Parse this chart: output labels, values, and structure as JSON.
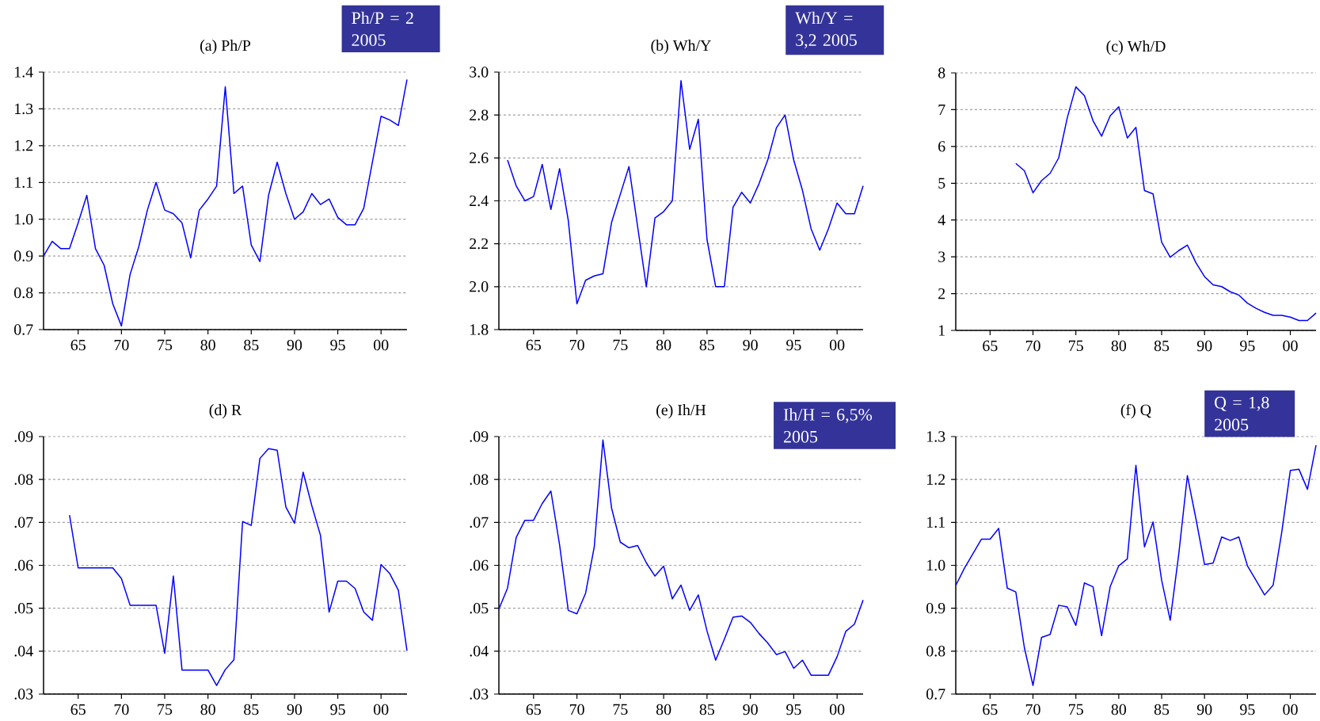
{
  "chart_data": [
    {
      "type": "line",
      "title": "(a) Ph/P",
      "annotations": [
        "Ph/P = 2 2005"
      ],
      "grid": "y",
      "xlim": [
        1961,
        2003
      ],
      "ylim": [
        0.7,
        1.4
      ],
      "xticks": [
        {
          "value": 1965,
          "label": "65"
        },
        {
          "value": 1970,
          "label": "70"
        },
        {
          "value": 1975,
          "label": "75"
        },
        {
          "value": 1980,
          "label": "80"
        },
        {
          "value": 1985,
          "label": "85"
        },
        {
          "value": 1990,
          "label": "90"
        },
        {
          "value": 1995,
          "label": "95"
        },
        {
          "value": 2000,
          "label": "00"
        }
      ],
      "yticks": [
        {
          "value": 0.7,
          "label": "0.7"
        },
        {
          "value": 0.8,
          "label": "0.8"
        },
        {
          "value": 0.9,
          "label": "0.9"
        },
        {
          "value": 1.0,
          "label": "1.0"
        },
        {
          "value": 1.1,
          "label": "1.1"
        },
        {
          "value": 1.2,
          "label": "1.2"
        },
        {
          "value": 1.3,
          "label": "1.3"
        },
        {
          "value": 1.4,
          "label": "1.4"
        }
      ],
      "x": [
        1961,
        1962,
        1963,
        1964,
        1965,
        1966,
        1967,
        1968,
        1969,
        1970,
        1971,
        1972,
        1973,
        1974,
        1975,
        1976,
        1977,
        1978,
        1979,
        1980,
        1981,
        1982,
        1983,
        1984,
        1985,
        1986,
        1987,
        1988,
        1989,
        1990,
        1991,
        1992,
        1993,
        1994,
        1995,
        1996,
        1997,
        1998,
        1999,
        2000,
        2001,
        2002,
        2003
      ],
      "series": [
        {
          "color": "#0000ff",
          "values": [
            0.9,
            0.94,
            0.92,
            0.92,
            0.99,
            1.065,
            0.92,
            0.875,
            0.77,
            0.71,
            0.85,
            0.925,
            1.025,
            1.1,
            1.025,
            1.015,
            0.99,
            0.895,
            1.025,
            1.055,
            1.09,
            1.36,
            1.07,
            1.09,
            0.93,
            0.885,
            1.065,
            1.155,
            1.07,
            1.0,
            1.02,
            1.07,
            1.04,
            1.055,
            1.005,
            0.985,
            0.985,
            1.03,
            1.155,
            1.28,
            1.27,
            1.255,
            1.38
          ]
        }
      ]
    },
    {
      "type": "line",
      "title": "(b) Wh/Y",
      "annotations": [
        "Wh/Y = 3,2 2005"
      ],
      "grid": "y",
      "xlim": [
        1961,
        2003
      ],
      "ylim": [
        1.8,
        3.0
      ],
      "xticks": [
        {
          "value": 1965,
          "label": "65"
        },
        {
          "value": 1970,
          "label": "70"
        },
        {
          "value": 1975,
          "label": "75"
        },
        {
          "value": 1980,
          "label": "80"
        },
        {
          "value": 1985,
          "label": "85"
        },
        {
          "value": 1990,
          "label": "90"
        },
        {
          "value": 1995,
          "label": "95"
        },
        {
          "value": 2000,
          "label": "00"
        }
      ],
      "yticks": [
        {
          "value": 1.8,
          "label": "1.8"
        },
        {
          "value": 2.0,
          "label": "2.0"
        },
        {
          "value": 2.2,
          "label": "2.2"
        },
        {
          "value": 2.4,
          "label": "2.4"
        },
        {
          "value": 2.6,
          "label": "2.6"
        },
        {
          "value": 2.8,
          "label": "2.8"
        },
        {
          "value": 3.0,
          "label": "3.0"
        }
      ],
      "x": [
        1962,
        1963,
        1964,
        1965,
        1966,
        1967,
        1968,
        1969,
        1970,
        1971,
        1972,
        1973,
        1974,
        1975,
        1976,
        1977,
        1978,
        1979,
        1980,
        1981,
        1982,
        1983,
        1984,
        1985,
        1986,
        1987,
        1988,
        1989,
        1990,
        1991,
        1992,
        1993,
        1994,
        1995,
        1996,
        1997,
        1998,
        1999,
        2000,
        2001,
        2002,
        2003
      ],
      "series": [
        {
          "color": "#0000ff",
          "values": [
            2.59,
            2.47,
            2.4,
            2.42,
            2.57,
            2.36,
            2.55,
            2.31,
            1.92,
            2.03,
            2.05,
            2.06,
            2.3,
            2.43,
            2.56,
            2.28,
            2.0,
            2.32,
            2.35,
            2.4,
            2.96,
            2.64,
            2.78,
            2.22,
            2.0,
            2.0,
            2.37,
            2.44,
            2.39,
            2.48,
            2.59,
            2.74,
            2.8,
            2.59,
            2.45,
            2.27,
            2.17,
            2.27,
            2.39,
            2.34,
            2.34,
            2.47
          ]
        }
      ]
    },
    {
      "type": "line",
      "title": "(c) Wh/D",
      "grid": "y",
      "xlim": [
        1961,
        2003
      ],
      "ylim": [
        1,
        8
      ],
      "xticks": [
        {
          "value": 1965,
          "label": "65"
        },
        {
          "value": 1970,
          "label": "70"
        },
        {
          "value": 1975,
          "label": "75"
        },
        {
          "value": 1980,
          "label": "80"
        },
        {
          "value": 1985,
          "label": "85"
        },
        {
          "value": 1990,
          "label": "90"
        },
        {
          "value": 1995,
          "label": "95"
        },
        {
          "value": 2000,
          "label": "00"
        }
      ],
      "yticks": [
        1,
        2,
        3,
        4,
        5,
        6,
        7,
        8
      ],
      "x": [
        1968,
        1969,
        1970,
        1971,
        1972,
        1973,
        1974,
        1975,
        1976,
        1977,
        1978,
        1979,
        1980,
        1981,
        1982,
        1983,
        1984,
        1985,
        1986,
        1987,
        1988,
        1989,
        1990,
        1991,
        1992,
        1993,
        1994,
        1995,
        1996,
        1997,
        1998,
        1999,
        2000,
        2001,
        2002,
        2003
      ],
      "series": [
        {
          "color": "#0000ff",
          "values": [
            5.54,
            5.34,
            4.74,
            5.07,
            5.27,
            5.69,
            6.78,
            7.62,
            7.38,
            6.7,
            6.28,
            6.83,
            7.08,
            6.23,
            6.52,
            4.8,
            4.71,
            3.4,
            2.99,
            3.17,
            3.32,
            2.84,
            2.46,
            2.24,
            2.19,
            2.05,
            1.96,
            1.74,
            1.6,
            1.49,
            1.41,
            1.41,
            1.36,
            1.27,
            1.27,
            1.47
          ]
        }
      ]
    },
    {
      "type": "line",
      "title": "(d) R",
      "grid": "y",
      "xlim": [
        1961,
        2003
      ],
      "ylim": [
        0.03,
        0.09
      ],
      "xticks": [
        {
          "value": 1965,
          "label": "65"
        },
        {
          "value": 1970,
          "label": "70"
        },
        {
          "value": 1975,
          "label": "75"
        },
        {
          "value": 1980,
          "label": "80"
        },
        {
          "value": 1985,
          "label": "85"
        },
        {
          "value": 1990,
          "label": "90"
        },
        {
          "value": 1995,
          "label": "95"
        },
        {
          "value": 2000,
          "label": "00"
        }
      ],
      "yticks": [
        {
          "value": 0.03,
          "label": ".03"
        },
        {
          "value": 0.04,
          "label": ".04"
        },
        {
          "value": 0.05,
          "label": ".05"
        },
        {
          "value": 0.06,
          "label": ".06"
        },
        {
          "value": 0.07,
          "label": ".07"
        },
        {
          "value": 0.08,
          "label": ".08"
        },
        {
          "value": 0.09,
          "label": ".09"
        }
      ],
      "x": [
        1964,
        1965,
        1966,
        1967,
        1968,
        1969,
        1970,
        1971,
        1972,
        1973,
        1974,
        1975,
        1976,
        1977,
        1978,
        1979,
        1980,
        1981,
        1982,
        1983,
        1984,
        1985,
        1986,
        1987,
        1988,
        1989,
        1990,
        1991,
        1992,
        1993,
        1994,
        1995,
        1996,
        1997,
        1998,
        1999,
        2000,
        2001,
        2002,
        2003
      ],
      "series": [
        {
          "color": "#0000ff",
          "values": [
            0.0717,
            0.0594,
            0.0594,
            0.0594,
            0.0594,
            0.0594,
            0.0569,
            0.0507,
            0.0507,
            0.0507,
            0.0507,
            0.0395,
            0.0575,
            0.0356,
            0.0356,
            0.0356,
            0.0356,
            0.032,
            0.0357,
            0.038,
            0.0702,
            0.0693,
            0.0849,
            0.0872,
            0.0868,
            0.0736,
            0.0698,
            0.0817,
            0.0739,
            0.067,
            0.0491,
            0.0563,
            0.0563,
            0.0546,
            0.0491,
            0.0472,
            0.0602,
            0.0581,
            0.0542,
            0.0401
          ]
        }
      ]
    },
    {
      "type": "line",
      "title": "(e) Ih/H",
      "annotations": [
        "Ih/H = 6,5% 2005"
      ],
      "grid": "y",
      "xlim": [
        1961,
        2003
      ],
      "ylim": [
        0.03,
        0.09
      ],
      "xticks": [
        {
          "value": 1965,
          "label": "65"
        },
        {
          "value": 1970,
          "label": "70"
        },
        {
          "value": 1975,
          "label": "75"
        },
        {
          "value": 1980,
          "label": "80"
        },
        {
          "value": 1985,
          "label": "85"
        },
        {
          "value": 1990,
          "label": "90"
        },
        {
          "value": 1995,
          "label": "95"
        },
        {
          "value": 2000,
          "label": "00"
        }
      ],
      "yticks": [
        {
          "value": 0.03,
          "label": ".03"
        },
        {
          "value": 0.04,
          "label": ".04"
        },
        {
          "value": 0.05,
          "label": ".05"
        },
        {
          "value": 0.06,
          "label": ".06"
        },
        {
          "value": 0.07,
          "label": ".07"
        },
        {
          "value": 0.08,
          "label": ".08"
        },
        {
          "value": 0.09,
          "label": ".09"
        }
      ],
      "x": [
        1961,
        1962,
        1963,
        1964,
        1965,
        1966,
        1967,
        1968,
        1969,
        1970,
        1971,
        1972,
        1973,
        1974,
        1975,
        1976,
        1977,
        1978,
        1979,
        1980,
        1981,
        1982,
        1983,
        1984,
        1985,
        1986,
        1987,
        1988,
        1989,
        1990,
        1991,
        1992,
        1993,
        1994,
        1995,
        1996,
        1997,
        1998,
        1999,
        2000,
        2001,
        2002,
        2003
      ],
      "series": [
        {
          "color": "#0000ff",
          "values": [
            0.0498,
            0.0547,
            0.0665,
            0.0705,
            0.0705,
            0.0744,
            0.0773,
            0.0648,
            0.0495,
            0.0487,
            0.0535,
            0.0643,
            0.0892,
            0.0733,
            0.0654,
            0.0641,
            0.0646,
            0.0606,
            0.0575,
            0.0598,
            0.0522,
            0.0554,
            0.0495,
            0.0531,
            0.0447,
            0.0379,
            0.0428,
            0.0479,
            0.0482,
            0.0467,
            0.0441,
            0.0419,
            0.0392,
            0.0399,
            0.036,
            0.0379,
            0.0344,
            0.0344,
            0.0344,
            0.0387,
            0.0446,
            0.0463,
            0.0519
          ]
        }
      ]
    },
    {
      "type": "line",
      "title": "(f) Q",
      "annotations": [
        "Q = 1,8 2005"
      ],
      "grid": "y",
      "xlim": [
        1961,
        2003
      ],
      "ylim": [
        0.7,
        1.3
      ],
      "xticks": [
        {
          "value": 1965,
          "label": "65"
        },
        {
          "value": 1970,
          "label": "70"
        },
        {
          "value": 1975,
          "label": "75"
        },
        {
          "value": 1980,
          "label": "80"
        },
        {
          "value": 1985,
          "label": "85"
        },
        {
          "value": 1990,
          "label": "90"
        },
        {
          "value": 1995,
          "label": "95"
        },
        {
          "value": 2000,
          "label": "00"
        }
      ],
      "yticks": [
        {
          "value": 0.7,
          "label": "0.7"
        },
        {
          "value": 0.8,
          "label": "0.8"
        },
        {
          "value": 0.9,
          "label": "0.9"
        },
        {
          "value": 1.0,
          "label": "1.0"
        },
        {
          "value": 1.1,
          "label": "1.1"
        },
        {
          "value": 1.2,
          "label": "1.2"
        },
        {
          "value": 1.3,
          "label": "1.3"
        }
      ],
      "x": [
        1961,
        1962,
        1963,
        1964,
        1965,
        1966,
        1967,
        1968,
        1969,
        1970,
        1971,
        1972,
        1973,
        1974,
        1975,
        1976,
        1977,
        1978,
        1979,
        1980,
        1981,
        1982,
        1983,
        1984,
        1985,
        1986,
        1987,
        1988,
        1989,
        1990,
        1991,
        1992,
        1993,
        1994,
        1995,
        1996,
        1997,
        1998,
        1999,
        2000,
        2001,
        2002,
        2003
      ],
      "series": [
        {
          "color": "#0000ff",
          "values": [
            0.953,
            0.993,
            1.027,
            1.061,
            1.061,
            1.086,
            0.947,
            0.938,
            0.808,
            0.72,
            0.832,
            0.839,
            0.907,
            0.903,
            0.86,
            0.959,
            0.95,
            0.836,
            0.95,
            0.999,
            1.015,
            1.233,
            1.043,
            1.101,
            0.965,
            0.872,
            1.027,
            1.209,
            1.108,
            1.002,
            1.005,
            1.066,
            1.058,
            1.066,
            0.999,
            0.965,
            0.931,
            0.954,
            1.077,
            1.221,
            1.224,
            1.177,
            1.28
          ]
        }
      ]
    }
  ]
}
